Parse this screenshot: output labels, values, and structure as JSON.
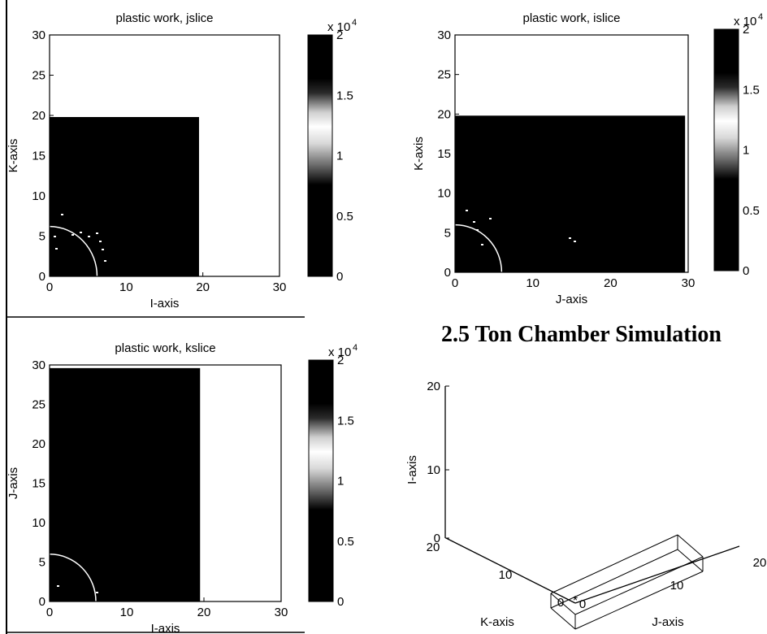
{
  "page": {
    "heading": "2.5 Ton Chamber Simulation"
  },
  "colors": {
    "field": "#000000",
    "background": "#ffffff",
    "contour": "#ffffff"
  },
  "chart_data": [
    {
      "id": "jslice",
      "type": "heatmap",
      "title": "plastic work, jslice",
      "xlabel": "I-axis",
      "ylabel": "K-axis",
      "xlim": [
        0,
        30
      ],
      "ylim": [
        0,
        30
      ],
      "xticks": [
        "0",
        "10",
        "20",
        "30"
      ],
      "yticks": [
        "0",
        "5",
        "10",
        "15",
        "20",
        "25",
        "30"
      ],
      "filled_region": {
        "x": [
          0,
          19.5
        ],
        "y": [
          0,
          19.8
        ],
        "value": 0
      },
      "contour_radius": 6.2,
      "colorbar": {
        "range": [
          0,
          2
        ],
        "ticks": [
          "0",
          "0.5",
          "1",
          "1.5",
          "2"
        ],
        "multiplier": "x 10",
        "exponent": "4"
      }
    },
    {
      "id": "islice",
      "type": "heatmap",
      "title": "plastic work, islice",
      "xlabel": "J-axis",
      "ylabel": "K-axis",
      "xlim": [
        0,
        30
      ],
      "ylim": [
        0,
        30
      ],
      "xticks": [
        "0",
        "10",
        "20",
        "30"
      ],
      "yticks": [
        "0",
        "5",
        "10",
        "15",
        "20",
        "25",
        "30"
      ],
      "filled_region": {
        "x": [
          0,
          29.6
        ],
        "y": [
          0,
          19.8
        ],
        "value": 0
      },
      "contour_radius": 6.0,
      "colorbar": {
        "range": [
          0,
          2
        ],
        "ticks": [
          "0",
          "0.5",
          "1",
          "1.5",
          "2"
        ],
        "multiplier": "x 10",
        "exponent": "4"
      }
    },
    {
      "id": "kslice",
      "type": "heatmap",
      "title": "plastic work, kslice",
      "xlabel": "I-axis",
      "ylabel": "J-axis",
      "xlim": [
        0,
        30
      ],
      "ylim": [
        0,
        30
      ],
      "xticks": [
        "0",
        "10",
        "20",
        "30"
      ],
      "yticks": [
        "0",
        "5",
        "10",
        "15",
        "20",
        "25",
        "30"
      ],
      "filled_region": {
        "x": [
          0,
          19.5
        ],
        "y": [
          0,
          29.6
        ],
        "value": 0
      },
      "contour_radius": 6.0,
      "colorbar": {
        "range": [
          0,
          2
        ],
        "ticks": [
          "0",
          "0.5",
          "1",
          "1.5",
          "2"
        ],
        "multiplier": "x 10",
        "exponent": "4"
      }
    },
    {
      "id": "geometry3d",
      "type": "scatter",
      "xlabel": "J-axis",
      "ylabel": "K-axis",
      "zlabel": "I-axis",
      "xticks": [
        "0",
        "10",
        "20"
      ],
      "yticks": [
        "0",
        "10",
        "20"
      ],
      "zticks": [
        "0",
        "10",
        "20"
      ]
    }
  ]
}
